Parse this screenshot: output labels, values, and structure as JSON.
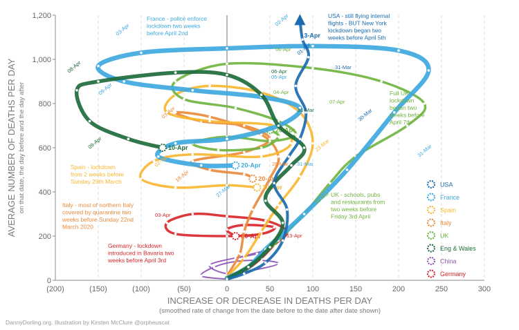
{
  "chart_data": {
    "type": "line",
    "title": "",
    "xlabel": "INCREASE OR DECREASE IN DEATHS PER DAY",
    "xlabel_sub": "(smoothed rate of change from the date before to the date after date shown)",
    "ylabel": "AVERAGE NUMBER OF DEATHS PER DAY",
    "ylabel_sub": "on that date, the day before and the day after",
    "xlim": [
      -200,
      300
    ],
    "ylim": [
      0,
      1200
    ],
    "x_ticks": [
      "(200)",
      "(150)",
      "(100)",
      "(50)",
      "0",
      "50",
      "100",
      "150",
      "200",
      "250",
      "300"
    ],
    "y_ticks": [
      "0",
      "200",
      "400",
      "600",
      "800",
      "1,000",
      "1,200"
    ],
    "grid": "vertical dashed",
    "legend_position": "right",
    "legend": [
      "USA",
      "France",
      "Spain",
      "Italy",
      "UK",
      "Eng & Wales",
      "China",
      "Germany"
    ],
    "colors": {
      "USA": "#1a6bb0",
      "France": "#3fa9df",
      "Spain": "#f7b731",
      "Italy": "#ea8a3c",
      "UK": "#6fb43f",
      "Eng & Wales": "#1e6b3c",
      "China": "#8e55b6",
      "Germany": "#d9262a"
    },
    "series": [
      {
        "name": "USA",
        "end_label": "3-Apr",
        "points": [
          [
            0,
            5
          ],
          [
            20,
            30
          ],
          [
            45,
            80
          ],
          [
            65,
            180
          ],
          [
            70,
            320
          ],
          [
            55,
            440
          ],
          [
            72,
            560
          ],
          [
            85,
            640
          ],
          [
            92,
            760
          ],
          [
            80,
            880
          ],
          [
            95,
            1010
          ],
          [
            88,
            1090
          ],
          [
            85,
            1180
          ]
        ]
      },
      {
        "name": "France",
        "end_label": "20-Apr",
        "points": [
          [
            0,
            10
          ],
          [
            25,
            60
          ],
          [
            45,
            140
          ],
          [
            90,
            300
          ],
          [
            140,
            500
          ],
          [
            195,
            760
          ],
          [
            235,
            950
          ],
          [
            200,
            1040
          ],
          [
            100,
            1060
          ],
          [
            0,
            1050
          ],
          [
            -100,
            1030
          ],
          [
            -150,
            970
          ],
          [
            -120,
            900
          ],
          [
            -40,
            860
          ],
          [
            40,
            830
          ],
          [
            85,
            780
          ],
          [
            60,
            700
          ],
          [
            0,
            640
          ],
          [
            -60,
            620
          ],
          [
            -80,
            560
          ],
          [
            -30,
            520
          ],
          [
            10,
            520
          ]
        ]
      },
      {
        "name": "Spain",
        "end_label": "20-Apr",
        "points": [
          [
            0,
            15
          ],
          [
            20,
            100
          ],
          [
            40,
            220
          ],
          [
            60,
            340
          ],
          [
            85,
            470
          ],
          [
            100,
            620
          ],
          [
            85,
            760
          ],
          [
            40,
            850
          ],
          [
            -20,
            880
          ],
          [
            -60,
            840
          ],
          [
            -70,
            760
          ],
          [
            -20,
            720
          ],
          [
            55,
            700
          ],
          [
            75,
            620
          ],
          [
            40,
            560
          ],
          [
            -40,
            570
          ],
          [
            -85,
            540
          ],
          [
            -100,
            460
          ],
          [
            -60,
            420
          ],
          [
            0,
            430
          ],
          [
            35,
            420
          ]
        ]
      },
      {
        "name": "Italy",
        "end_label": "20-Apr",
        "points": [
          [
            0,
            20
          ],
          [
            15,
            120
          ],
          [
            20,
            220
          ],
          [
            30,
            320
          ],
          [
            50,
            460
          ],
          [
            60,
            560
          ],
          [
            40,
            660
          ],
          [
            -20,
            740
          ],
          [
            -60,
            760
          ],
          [
            -30,
            720
          ],
          [
            20,
            700
          ],
          [
            50,
            640
          ],
          [
            20,
            580
          ],
          [
            -40,
            540
          ],
          [
            -20,
            500
          ],
          [
            20,
            480
          ],
          [
            30,
            460
          ]
        ]
      },
      {
        "name": "UK",
        "end_label": "20-Apr",
        "points": [
          [
            0,
            10
          ],
          [
            30,
            80
          ],
          [
            60,
            180
          ],
          [
            90,
            300
          ],
          [
            120,
            440
          ],
          [
            150,
            560
          ],
          [
            210,
            700
          ],
          [
            230,
            800
          ],
          [
            180,
            900
          ],
          [
            100,
            960
          ],
          [
            0,
            980
          ],
          [
            -60,
            900
          ],
          [
            -50,
            820
          ],
          [
            10,
            780
          ],
          [
            60,
            720
          ],
          [
            80,
            660
          ],
          [
            50,
            630
          ],
          [
            0,
            650
          ],
          [
            -40,
            620
          ],
          [
            -10,
            590
          ],
          [
            40,
            600
          ],
          [
            60,
            650
          ],
          [
            50,
            680
          ]
        ]
      },
      {
        "name": "Eng & Wales",
        "end_label": "10-Apr",
        "points": [
          [
            0,
            8
          ],
          [
            25,
            60
          ],
          [
            50,
            150
          ],
          [
            65,
            260
          ],
          [
            45,
            360
          ],
          [
            55,
            440
          ],
          [
            75,
            520
          ],
          [
            90,
            600
          ],
          [
            60,
            700
          ],
          [
            40,
            840
          ],
          [
            0,
            930
          ],
          [
            -60,
            940
          ],
          [
            -150,
            900
          ],
          [
            -175,
            860
          ],
          [
            -160,
            720
          ],
          [
            -115,
            640
          ],
          [
            -75,
            600
          ]
        ]
      },
      {
        "name": "China",
        "end_label": "",
        "points": [
          [
            0,
            5
          ],
          [
            -30,
            20
          ],
          [
            -15,
            60
          ],
          [
            10,
            85
          ],
          [
            40,
            90
          ],
          [
            60,
            75
          ],
          [
            30,
            45
          ],
          [
            0,
            30
          ],
          [
            -20,
            70
          ],
          [
            20,
            110
          ],
          [
            50,
            140
          ],
          [
            35,
            120
          ],
          [
            10,
            100
          ]
        ]
      },
      {
        "name": "Germany",
        "end_label": "20-Apr",
        "points": [
          [
            0,
            5
          ],
          [
            20,
            40
          ],
          [
            40,
            100
          ],
          [
            55,
            160
          ],
          [
            70,
            220
          ],
          [
            45,
            270
          ],
          [
            0,
            290
          ],
          [
            -40,
            300
          ],
          [
            -70,
            260
          ],
          [
            -60,
            210
          ],
          [
            0,
            200
          ],
          [
            40,
            210
          ],
          [
            55,
            240
          ],
          [
            20,
            250
          ],
          [
            0,
            230
          ],
          [
            10,
            200
          ]
        ]
      }
    ],
    "date_labels": [
      "03-Apr",
      "02-Apr",
      "01-Apr",
      "31-Mar",
      "30-Mar",
      "31-Mar",
      "06-Apr",
      "05-Apr",
      "04-Apr",
      "07-Apr",
      "08-Apr",
      "09-Apr",
      "09-Apr",
      "06-Apr",
      "03-Apr",
      "02-Apr",
      "26-Mar",
      "18-Apr",
      "27-Mar",
      "31-Mar",
      "30-Mar",
      "03-Apr",
      "13-Apr",
      "23-Mar",
      "31-Mar"
    ],
    "annotations": [
      {
        "text": "France - police enforce\nlockdown two weeks\nbefore April 2nd",
        "series": "France"
      },
      {
        "text": "USA - still flying internal\nflights - BUT New York\nlockdown began two\nweeks before April 5th",
        "series": "USA"
      },
      {
        "text": "Full UK\nlockdown\nbegan two\nweeks before\nApril 7th",
        "series": "UK"
      },
      {
        "text": "Spain - lockdown\nfrom 2 weeks before\nSunday 29th March",
        "series": "Spain"
      },
      {
        "text": "Italy - most of northern Italy\ncovered by quarantine two\nweeks before Sunday 22nd\nMarch 2020",
        "series": "Italy"
      },
      {
        "text": "UK - schools, pubs\nand restaurants from\ntwo weeks before\nFriday 3rd April",
        "series": "UK"
      },
      {
        "text": "Germany - lockdown\nintroduced in Bavaria two\nweeks before April 3rd",
        "series": "Germany"
      }
    ]
  },
  "credit": "DannyDorling.org. Illustration by Kirsten McClure @orpheuscat"
}
